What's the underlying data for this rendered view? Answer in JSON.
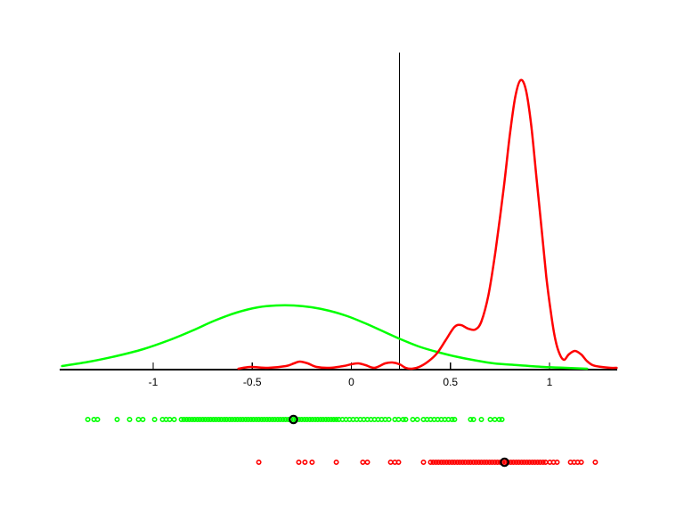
{
  "figure": {
    "background": "#ffffff",
    "axis_color": "#000000"
  },
  "chart_data": {
    "type": "line",
    "subtype": "kernel-density-with-rug-strips",
    "grid": false,
    "xlim": [
      -1.47,
      1.34
    ],
    "ylim": [
      0,
      3.56
    ],
    "x_ticks": {
      "values": [
        -1,
        -0.5,
        0,
        0.5,
        1
      ],
      "labels": [
        "-1",
        "-0.5",
        "0",
        "0.5",
        "1"
      ]
    },
    "threshold_line": {
      "x": 0.243,
      "top": 3.56,
      "color": "#000000"
    },
    "series": [
      {
        "name": "green-density",
        "color": "#00ff00",
        "x": [
          -1.46,
          -1.32,
          -1.19,
          -1.05,
          -0.92,
          -0.8,
          -0.69,
          -0.58,
          -0.47,
          -0.38,
          -0.29,
          -0.2,
          -0.11,
          -0.02,
          0.07,
          0.16,
          0.25,
          0.34,
          0.43,
          0.52,
          0.61,
          0.72,
          0.84,
          0.97,
          1.08,
          1.19
        ],
        "y": [
          0.04,
          0.09,
          0.15,
          0.23,
          0.33,
          0.44,
          0.55,
          0.64,
          0.7,
          0.72,
          0.72,
          0.7,
          0.66,
          0.6,
          0.52,
          0.43,
          0.34,
          0.26,
          0.2,
          0.15,
          0.11,
          0.07,
          0.05,
          0.03,
          0.02,
          0.01
        ]
      },
      {
        "name": "red-density",
        "color": "#ff0000",
        "x": [
          -0.57,
          -0.51,
          -0.42,
          -0.33,
          -0.29,
          -0.26,
          -0.22,
          -0.175,
          -0.11,
          -0.04,
          0.0,
          0.036,
          0.072,
          0.117,
          0.171,
          0.207,
          0.243,
          0.274,
          0.306,
          0.342,
          0.387,
          0.431,
          0.476,
          0.521,
          0.553,
          0.589,
          0.625,
          0.656,
          0.692,
          0.728,
          0.769,
          0.8,
          0.827,
          0.854,
          0.881,
          0.908,
          0.935,
          0.962,
          0.984,
          1.007,
          1.029,
          1.052,
          1.074,
          1.097,
          1.128,
          1.16,
          1.187,
          1.218,
          1.263,
          1.308,
          1.339
        ],
        "y": [
          0.01,
          0.03,
          0.02,
          0.04,
          0.07,
          0.09,
          0.07,
          0.03,
          0.02,
          0.04,
          0.06,
          0.07,
          0.05,
          0.02,
          0.07,
          0.08,
          0.06,
          0.02,
          0.01,
          0.03,
          0.09,
          0.18,
          0.33,
          0.48,
          0.5,
          0.46,
          0.45,
          0.54,
          0.84,
          1.34,
          2.04,
          2.64,
          3.06,
          3.25,
          3.14,
          2.74,
          2.14,
          1.54,
          1.04,
          0.64,
          0.34,
          0.17,
          0.11,
          0.17,
          0.21,
          0.17,
          0.1,
          0.05,
          0.03,
          0.02,
          0.02
        ]
      }
    ],
    "rug": [
      {
        "name": "green-samples",
        "color": "#00ff00",
        "selected": -0.292,
        "points": [
          -1.33,
          -1.299,
          -1.281,
          -1.182,
          -1.119,
          -1.074,
          -1.052,
          -0.993,
          -0.953,
          -0.935,
          -0.917,
          -0.894,
          -0.858,
          -0.845,
          -0.831,
          -0.818,
          -0.804,
          -0.791,
          -0.777,
          -0.764,
          -0.75,
          -0.737,
          -0.723,
          -0.71,
          -0.696,
          -0.683,
          -0.669,
          -0.656,
          -0.642,
          -0.629,
          -0.615,
          -0.602,
          -0.588,
          -0.575,
          -0.561,
          -0.548,
          -0.534,
          -0.521,
          -0.507,
          -0.494,
          -0.48,
          -0.467,
          -0.453,
          -0.44,
          -0.426,
          -0.413,
          -0.399,
          -0.386,
          -0.372,
          -0.359,
          -0.345,
          -0.332,
          -0.318,
          -0.305,
          -0.291,
          -0.278,
          -0.264,
          -0.251,
          -0.237,
          -0.224,
          -0.21,
          -0.197,
          -0.183,
          -0.17,
          -0.156,
          -0.143,
          -0.129,
          -0.116,
          -0.102,
          -0.089,
          -0.076,
          -0.063,
          -0.045,
          -0.027,
          -0.009,
          0.009,
          0.027,
          0.045,
          0.063,
          0.081,
          0.099,
          0.117,
          0.135,
          0.153,
          0.171,
          0.189,
          0.22,
          0.238,
          0.261,
          0.274,
          0.31,
          0.333,
          0.364,
          0.382,
          0.4,
          0.418,
          0.436,
          0.454,
          0.472,
          0.49,
          0.508,
          0.521,
          0.602,
          0.616,
          0.656,
          0.701,
          0.724,
          0.746,
          0.76
        ]
      },
      {
        "name": "red-samples",
        "color": "#ff0000",
        "selected": 0.773,
        "points": [
          -0.467,
          -0.265,
          -0.234,
          -0.198,
          -0.076,
          0.058,
          0.081,
          0.198,
          0.22,
          0.238,
          0.364,
          0.4,
          0.413,
          0.427,
          0.44,
          0.454,
          0.467,
          0.481,
          0.494,
          0.508,
          0.521,
          0.535,
          0.548,
          0.562,
          0.575,
          0.589,
          0.602,
          0.616,
          0.629,
          0.643,
          0.656,
          0.67,
          0.683,
          0.697,
          0.71,
          0.724,
          0.737,
          0.751,
          0.764,
          0.778,
          0.791,
          0.805,
          0.818,
          0.832,
          0.845,
          0.859,
          0.872,
          0.886,
          0.899,
          0.913,
          0.926,
          0.94,
          0.953,
          0.967,
          0.98,
          1.002,
          1.02,
          1.038,
          1.106,
          1.124,
          1.142,
          1.16,
          1.231
        ]
      }
    ]
  }
}
